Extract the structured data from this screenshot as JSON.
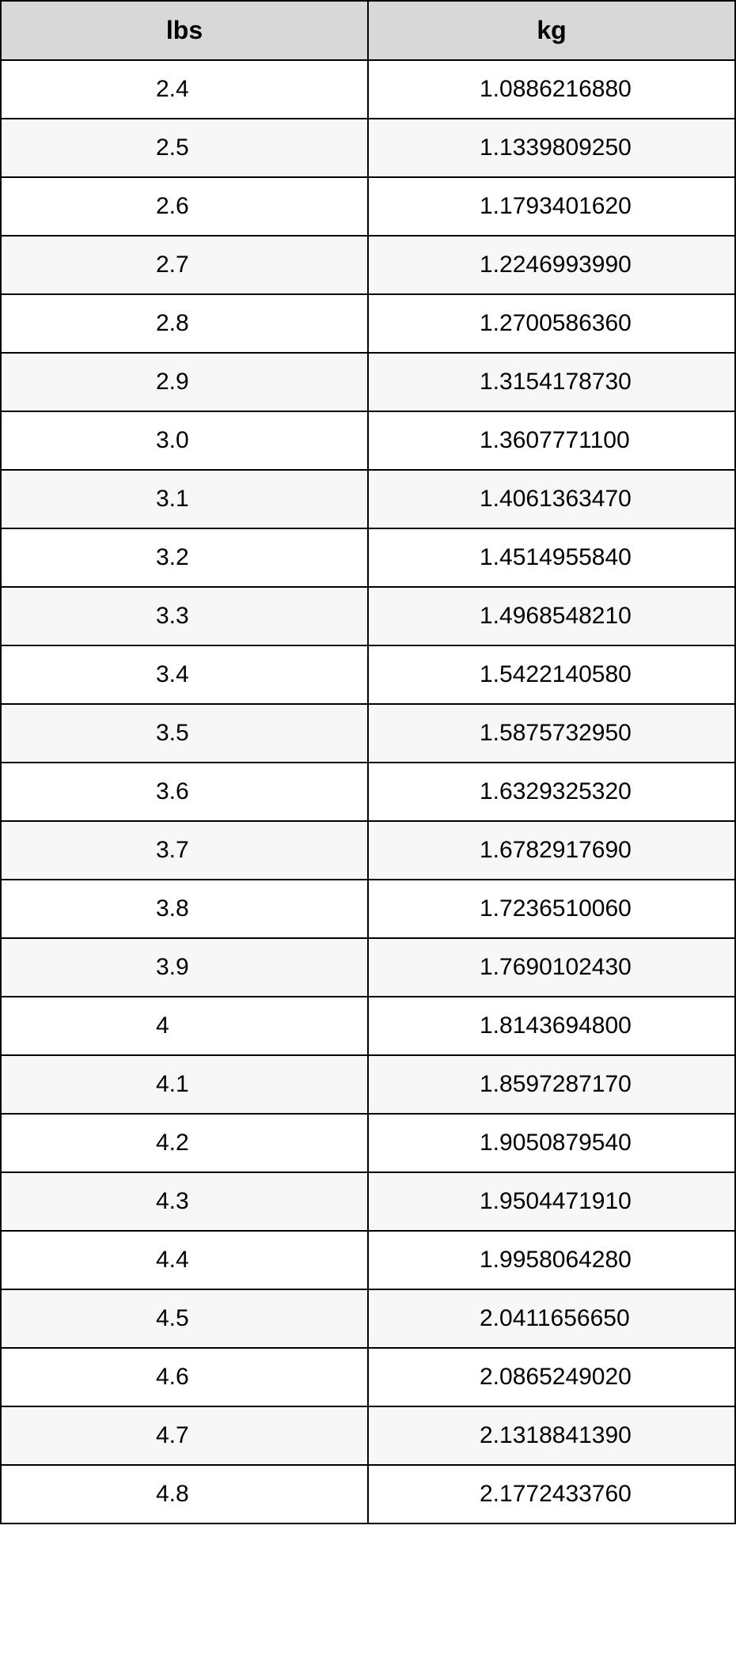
{
  "table": {
    "header_bg": "#d8d8d8",
    "border_color": "#000000",
    "row_alt_bg": "#f7f7f7",
    "row_bg": "#ffffff",
    "text_color": "#000000",
    "header_fontsize": 32,
    "cell_fontsize": 30,
    "columns": [
      {
        "label": "lbs",
        "key": "lbs"
      },
      {
        "label": "kg",
        "key": "kg"
      }
    ],
    "rows": [
      {
        "lbs": "2.4",
        "kg": "1.0886216880"
      },
      {
        "lbs": "2.5",
        "kg": "1.1339809250"
      },
      {
        "lbs": "2.6",
        "kg": "1.1793401620"
      },
      {
        "lbs": "2.7",
        "kg": "1.2246993990"
      },
      {
        "lbs": "2.8",
        "kg": "1.2700586360"
      },
      {
        "lbs": "2.9",
        "kg": "1.3154178730"
      },
      {
        "lbs": "3.0",
        "kg": "1.3607771100"
      },
      {
        "lbs": "3.1",
        "kg": "1.4061363470"
      },
      {
        "lbs": "3.2",
        "kg": "1.4514955840"
      },
      {
        "lbs": "3.3",
        "kg": "1.4968548210"
      },
      {
        "lbs": "3.4",
        "kg": "1.5422140580"
      },
      {
        "lbs": "3.5",
        "kg": "1.5875732950"
      },
      {
        "lbs": "3.6",
        "kg": "1.6329325320"
      },
      {
        "lbs": "3.7",
        "kg": "1.6782917690"
      },
      {
        "lbs": "3.8",
        "kg": "1.7236510060"
      },
      {
        "lbs": "3.9",
        "kg": "1.7690102430"
      },
      {
        "lbs": "4",
        "kg": "1.8143694800"
      },
      {
        "lbs": "4.1",
        "kg": "1.8597287170"
      },
      {
        "lbs": "4.2",
        "kg": "1.9050879540"
      },
      {
        "lbs": "4.3",
        "kg": "1.9504471910"
      },
      {
        "lbs": "4.4",
        "kg": "1.9958064280"
      },
      {
        "lbs": "4.5",
        "kg": "2.0411656650"
      },
      {
        "lbs": "4.6",
        "kg": "2.0865249020"
      },
      {
        "lbs": "4.7",
        "kg": "2.1318841390"
      },
      {
        "lbs": "4.8",
        "kg": "2.1772433760"
      }
    ]
  }
}
